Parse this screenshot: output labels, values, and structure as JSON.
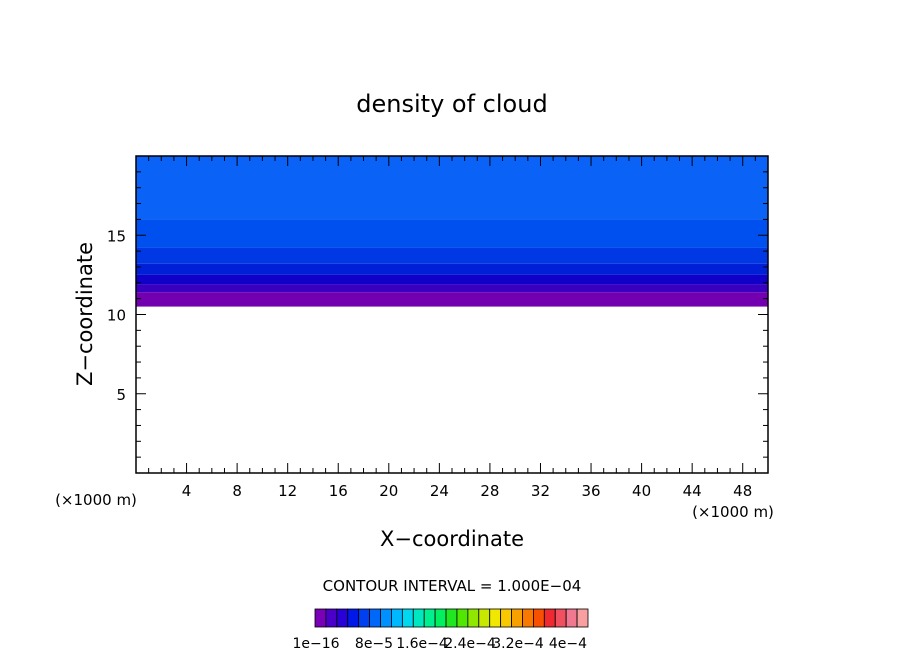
{
  "chart_data": {
    "type": "heatmap",
    "title": "density of cloud",
    "xlabel": "X−coordinate",
    "ylabel": "Z−coordinate",
    "x_unit_left": "(×1000 m)",
    "x_unit_right": "(×1000 m)",
    "xlim": [
      0,
      50
    ],
    "ylim": [
      0,
      20
    ],
    "x_ticks": [
      4,
      8,
      12,
      16,
      20,
      24,
      28,
      32,
      36,
      40,
      44,
      48
    ],
    "y_ticks": [
      5,
      10,
      15
    ],
    "contour_interval_label": "CONTOUR INTERVAL = 1.000E−04",
    "colorbar_labels": [
      "1e−16",
      "8e−5",
      "1.6e−4",
      "2.4e−4",
      "3.2e−4",
      "4e−4"
    ],
    "colorbar_colors": [
      "#7a00b8",
      "#4a00c8",
      "#2800d8",
      "#0018e8",
      "#0040f0",
      "#0068f8",
      "#0090ff",
      "#00b8ff",
      "#00d8f0",
      "#00e8c0",
      "#00f090",
      "#00f060",
      "#20e820",
      "#50e800",
      "#90e800",
      "#c8e800",
      "#f0e800",
      "#f8c800",
      "#f8a000",
      "#f87800",
      "#f85000",
      "#f02830",
      "#f05060",
      "#f07890",
      "#f8a0a0"
    ],
    "bands": [
      {
        "z_low": 16.0,
        "z_high": 19.8,
        "color": "#0a62f7"
      },
      {
        "z_low": 14.2,
        "z_high": 16.0,
        "color": "#0050f0"
      },
      {
        "z_low": 13.2,
        "z_high": 14.2,
        "color": "#0038e4"
      },
      {
        "z_low": 12.5,
        "z_high": 13.2,
        "color": "#0020d8"
      },
      {
        "z_low": 11.9,
        "z_high": 12.5,
        "color": "#1000c8"
      },
      {
        "z_low": 11.4,
        "z_high": 11.9,
        "color": "#3a00c0"
      },
      {
        "z_low": 10.5,
        "z_high": 11.4,
        "color": "#7200b0"
      }
    ]
  }
}
